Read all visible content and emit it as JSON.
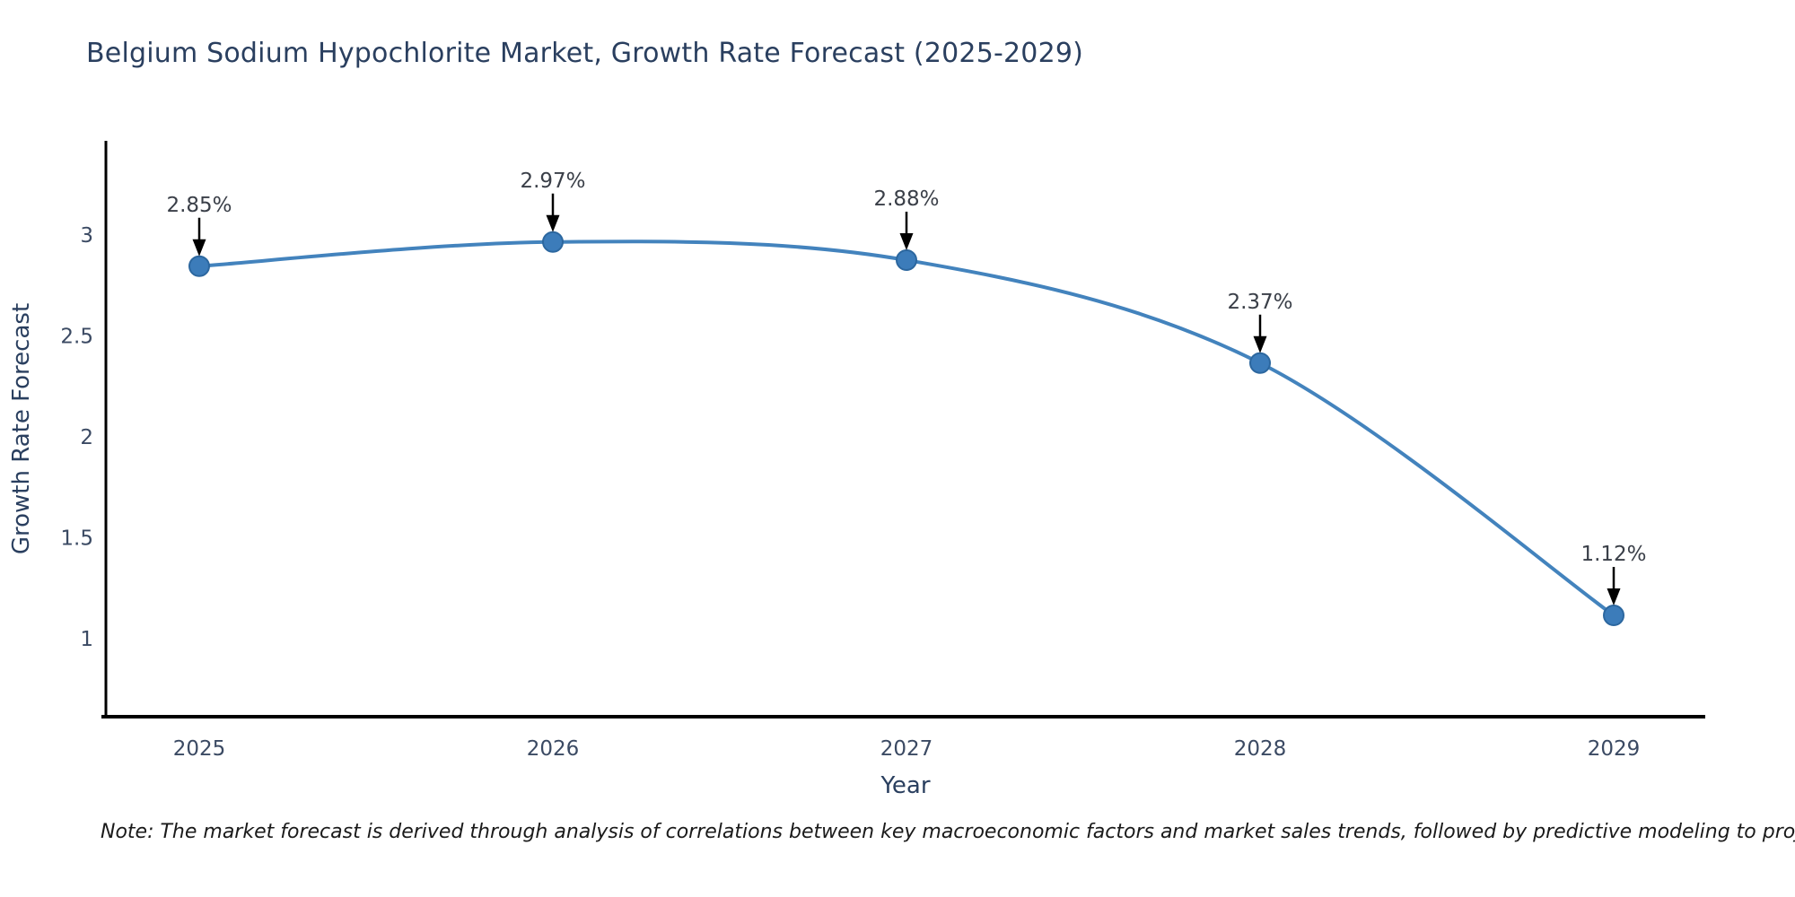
{
  "title": "Belgium Sodium Hypochlorite Market, Growth Rate Forecast (2025-2029)",
  "note": "Note: The market forecast is derived through analysis of correlations between key macroeconomic factors and market sales trends, followed by predictive modeling to project future sales",
  "chart_data": {
    "type": "line",
    "title": "Belgium Sodium Hypochlorite Market, Growth Rate Forecast (2025-2029)",
    "xlabel": "Year",
    "ylabel": "Growth Rate Forecast",
    "x": [
      2025,
      2026,
      2027,
      2028,
      2029
    ],
    "values": [
      2.85,
      2.97,
      2.88,
      2.37,
      1.12
    ],
    "point_labels": [
      "2.85%",
      "2.97%",
      "2.88%",
      "2.37%",
      "1.12%"
    ],
    "yticks": [
      3,
      2.5,
      2,
      1.5,
      1
    ],
    "ylim": [
      0.61,
      3.48
    ],
    "grid": false,
    "legend": "none",
    "line_shape": "spline",
    "marker": "circle"
  },
  "colors": {
    "line": "#4383bd",
    "marker_fill": "#3c7cba",
    "marker_edge": "#2c679f",
    "axis_line": "#000000",
    "title": "#2a3f5f",
    "axis_title": "#2a3f5f",
    "tick": "#3b4a63",
    "annotation_text": "#3a3f48",
    "annotation_arrow": "#000000",
    "note": "#1a1a1a",
    "background": "#ffffff"
  }
}
